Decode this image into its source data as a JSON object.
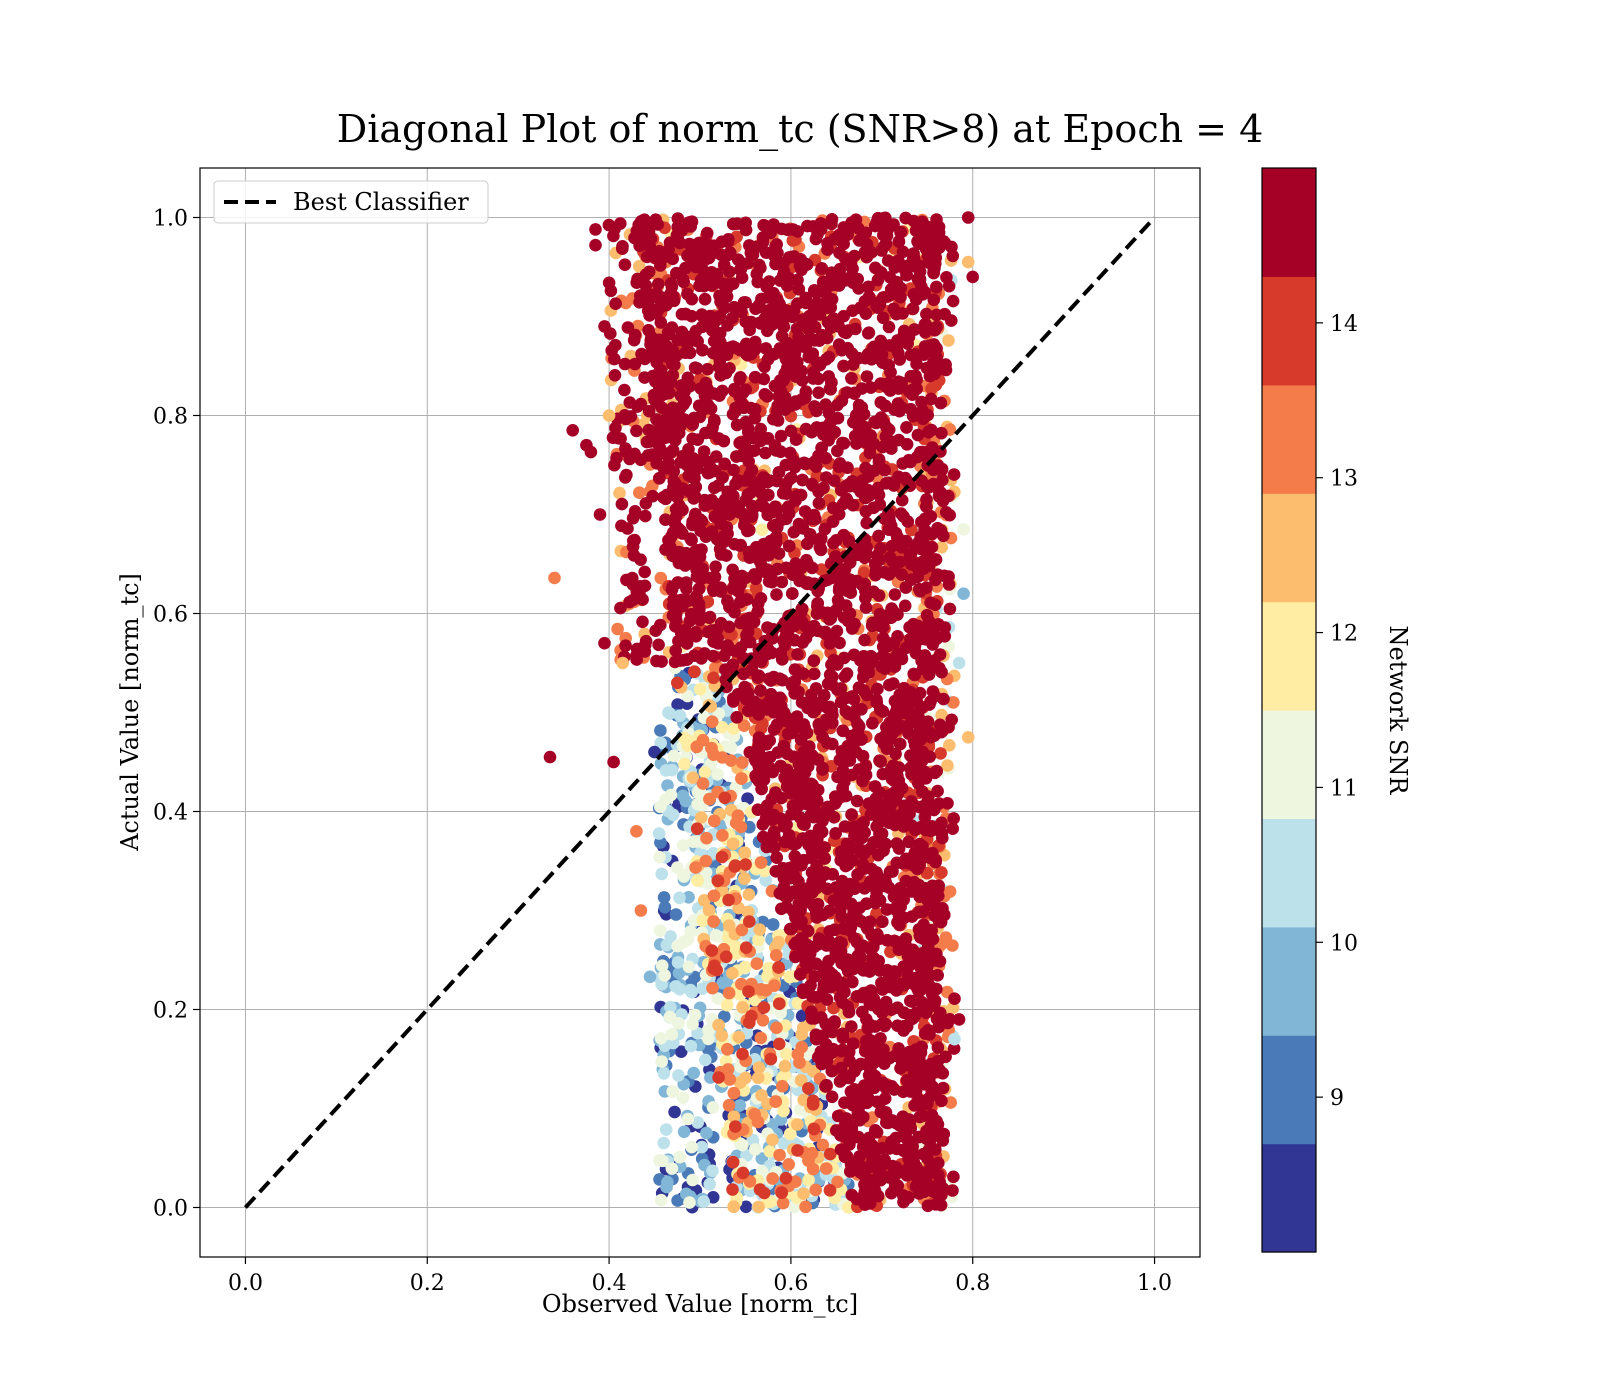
{
  "chart_data": {
    "type": "scatter",
    "title": "Diagonal Plot of norm_tc (SNR>8) at Epoch = 4",
    "xlabel": "Observed Value [norm_tc]",
    "ylabel": "Actual Value [norm_tc]",
    "xlim": [
      -0.05,
      1.05
    ],
    "ylim": [
      -0.05,
      1.05
    ],
    "xticks": [
      "0.0",
      "0.2",
      "0.4",
      "0.6",
      "0.8",
      "1.0"
    ],
    "yticks": [
      "0.0",
      "0.2",
      "0.4",
      "0.6",
      "0.8",
      "1.0"
    ],
    "grid": true,
    "legend": {
      "placement": "top-left",
      "entries": [
        {
          "label": "Best Classifier",
          "style": "dashed",
          "color": "#000000"
        }
      ]
    },
    "reference_line": {
      "label": "Best Classifier",
      "x": [
        0.0,
        1.0
      ],
      "y": [
        0.0,
        1.0
      ]
    },
    "colorbar": {
      "label": "Network SNR",
      "range": [
        8.0,
        15.0
      ],
      "ticks": [
        "9",
        "10",
        "11",
        "12",
        "13",
        "14"
      ],
      "tick_values": [
        9,
        10,
        11,
        12,
        13,
        14
      ],
      "colors": [
        "#313695",
        "#4575b4",
        "#74add1",
        "#abd9e9",
        "#e0f3f8",
        "#ffffbf",
        "#fee090",
        "#fdae61",
        "#f46d43",
        "#a50026"
      ],
      "band_colors": [
        "#313695",
        "#4a7ab8",
        "#81b6d6",
        "#bde1eb",
        "#eef6e0",
        "#feeda2",
        "#fdbd6f",
        "#f47c4b",
        "#d73a2b",
        "#a50026"
      ]
    },
    "points": [
      [
        0.335,
        0.455,
        14.6
      ],
      [
        0.34,
        0.636,
        13.2
      ],
      [
        0.36,
        0.785,
        14.6
      ],
      [
        0.375,
        0.77,
        14.6
      ],
      [
        0.38,
        0.763,
        14.6
      ],
      [
        0.385,
        0.988,
        14.6
      ],
      [
        0.385,
        0.972,
        14.6
      ],
      [
        0.39,
        0.7,
        14.6
      ],
      [
        0.395,
        0.57,
        14.6
      ],
      [
        0.4,
        0.934,
        14.6
      ],
      [
        0.405,
        0.45,
        14.6
      ],
      [
        0.395,
        0.89,
        14.6
      ],
      [
        0.43,
        0.38,
        13.2
      ],
      [
        0.435,
        0.3,
        13.2
      ],
      [
        0.445,
        0.233,
        9.5
      ],
      [
        0.45,
        0.46,
        8.4
      ],
      [
        0.44,
        0.99,
        14.6
      ],
      [
        0.415,
        0.55,
        12.5
      ],
      [
        0.4,
        0.8,
        12.5
      ],
      [
        0.795,
        0.475,
        12.5
      ],
      [
        0.795,
        0.955,
        12.3
      ],
      [
        0.8,
        0.94,
        14.6
      ],
      [
        0.795,
        1.0,
        14.6
      ],
      [
        0.79,
        0.685,
        11.0
      ],
      [
        0.785,
        0.19,
        14.6
      ],
      [
        0.78,
        0.17,
        10.5
      ],
      [
        0.785,
        0.55,
        10.6
      ],
      [
        0.79,
        0.62,
        9.8
      ]
    ]
  }
}
